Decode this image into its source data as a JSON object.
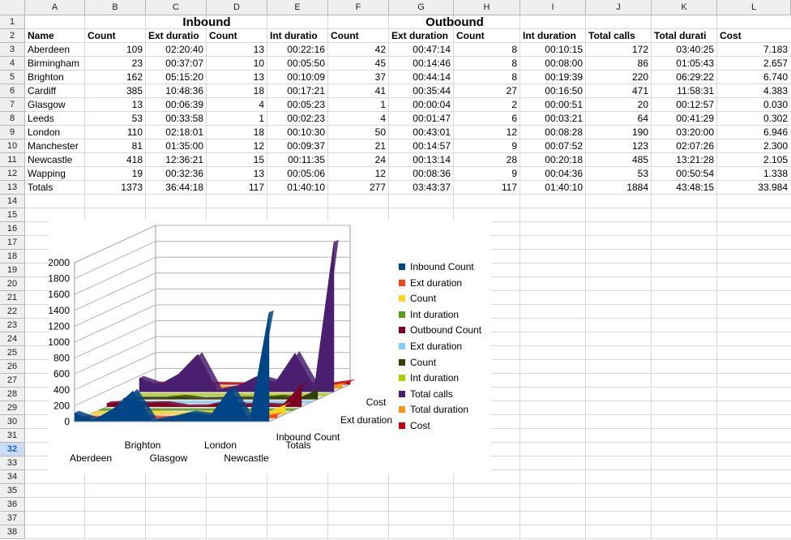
{
  "columns": [
    "A",
    "B",
    "C",
    "D",
    "E",
    "F",
    "G",
    "H",
    "I",
    "J",
    "K",
    "L"
  ],
  "rows_visible": [
    "1",
    "2",
    "3",
    "4",
    "5",
    "6",
    "7",
    "8",
    "9",
    "10",
    "11",
    "12",
    "13",
    "14",
    "15",
    "16",
    "17",
    "18",
    "19",
    "20",
    "21",
    "22",
    "23",
    "24",
    "25",
    "26",
    "27",
    "28",
    "29",
    "30",
    "31",
    "32",
    "33",
    "34",
    "35",
    "36",
    "37",
    "38"
  ],
  "selected_row": "32",
  "section_titles": {
    "inbound": "Inbound",
    "outbound": "Outbound"
  },
  "headers": [
    "Name",
    "Count",
    "Ext duratio",
    "Count",
    "Int duratio",
    "Count",
    "Ext duration",
    "Count",
    "Int duration",
    "Total calls",
    "Total durati",
    "Cost"
  ],
  "table": [
    [
      "Aberdeen",
      "109",
      "02:20:40",
      "13",
      "00:22:16",
      "42",
      "00:47:14",
      "8",
      "00:10:15",
      "172",
      "03:40:25",
      "7.183"
    ],
    [
      "Birmingham",
      "23",
      "00:37:07",
      "10",
      "00:05:50",
      "45",
      "00:14:46",
      "8",
      "00:08:00",
      "86",
      "01:05:43",
      "2.657"
    ],
    [
      "Brighton",
      "162",
      "05:15:20",
      "13",
      "00:10:09",
      "37",
      "00:44:14",
      "8",
      "00:19:39",
      "220",
      "06:29:22",
      "6.740"
    ],
    [
      "Cardiff",
      "385",
      "10:48:36",
      "18",
      "00:17:21",
      "41",
      "00:35:44",
      "27",
      "00:16:50",
      "471",
      "11:58:31",
      "4.383"
    ],
    [
      "Glasgow",
      "13",
      "00:06:39",
      "4",
      "00:05:23",
      "1",
      "00:00:04",
      "2",
      "00:00:51",
      "20",
      "00:12:57",
      "0.030"
    ],
    [
      "Leeds",
      "53",
      "00:33:58",
      "1",
      "00:02:23",
      "4",
      "00:01:47",
      "6",
      "00:03:21",
      "64",
      "00:41:29",
      "0.302"
    ],
    [
      "London",
      "110",
      "02:18:01",
      "18",
      "00:10:30",
      "50",
      "00:43:01",
      "12",
      "00:08:28",
      "190",
      "03:20:00",
      "6.946"
    ],
    [
      "Manchester",
      "81",
      "01:35:00",
      "12",
      "00:09:37",
      "21",
      "00:14:57",
      "9",
      "00:07:52",
      "123",
      "02:07:26",
      "2.300"
    ],
    [
      "Newcastle",
      "418",
      "12:36:21",
      "15",
      "00:11:35",
      "24",
      "00:13:14",
      "28",
      "00:20:18",
      "485",
      "13:21:28",
      "2.105"
    ],
    [
      "Wapping",
      "19",
      "00:32:36",
      "13",
      "00:05:06",
      "12",
      "00:08:36",
      "9",
      "00:04:36",
      "53",
      "00:50:54",
      "1.338"
    ],
    [
      "Totals",
      "1373",
      "36:44:18",
      "117",
      "01:40:10",
      "277",
      "03:43:37",
      "117",
      "01:40:10",
      "1884",
      "43:48:15",
      "33.984"
    ]
  ],
  "chart_data": {
    "type": "area",
    "three_d": true,
    "categories": [
      "Aberdeen",
      "Birmingham",
      "Brighton",
      "Cardiff",
      "Glasgow",
      "Leeds",
      "London",
      "Manchester",
      "Newcastle",
      "Wapping",
      "Totals"
    ],
    "x_tick_labels_front": [
      "Aberdeen",
      "Glasgow",
      "Newcastle"
    ],
    "x_tick_labels_back": [
      "Brighton",
      "London",
      "Totals"
    ],
    "ylim": [
      0,
      2000
    ],
    "y_ticks": [
      0,
      200,
      400,
      600,
      800,
      1000,
      1200,
      1400,
      1600,
      1800,
      2000
    ],
    "depth_labels": [
      "Inbound Count",
      "Ext duration",
      "Cost"
    ],
    "series": [
      {
        "name": "Inbound Count",
        "color": "#004586",
        "values": [
          109,
          23,
          162,
          385,
          13,
          53,
          110,
          81,
          418,
          19,
          1373
        ]
      },
      {
        "name": "Ext duration",
        "color": "#ff420e",
        "values": [
          2.3,
          0.6,
          5.3,
          10.8,
          0.1,
          0.6,
          2.3,
          1.6,
          12.6,
          0.5,
          36.7
        ]
      },
      {
        "name": "Count",
        "color": "#ffd320",
        "values": [
          13,
          10,
          13,
          18,
          4,
          1,
          18,
          12,
          15,
          13,
          117
        ]
      },
      {
        "name": "Int duration",
        "color": "#579d1c",
        "values": [
          0.4,
          0.1,
          0.2,
          0.3,
          0.1,
          0.0,
          0.2,
          0.2,
          0.2,
          0.1,
          1.7
        ]
      },
      {
        "name": "Outbound Count",
        "color": "#7e0021",
        "values": [
          42,
          45,
          37,
          41,
          1,
          4,
          50,
          21,
          24,
          12,
          277
        ]
      },
      {
        "name": "Ext duration",
        "color": "#83caff",
        "values": [
          0.8,
          0.2,
          0.7,
          0.6,
          0.0,
          0.0,
          0.7,
          0.2,
          0.2,
          0.1,
          3.7
        ]
      },
      {
        "name": "Count",
        "color": "#314004",
        "values": [
          8,
          8,
          8,
          27,
          2,
          6,
          12,
          9,
          28,
          9,
          117
        ]
      },
      {
        "name": "Int duration",
        "color": "#aecf00",
        "values": [
          0.2,
          0.1,
          0.3,
          0.3,
          0.0,
          0.1,
          0.1,
          0.1,
          0.3,
          0.1,
          1.7
        ]
      },
      {
        "name": "Total calls",
        "color": "#4b1f6f",
        "values": [
          172,
          86,
          220,
          471,
          20,
          64,
          190,
          123,
          485,
          53,
          1884
        ]
      },
      {
        "name": "Total duration",
        "color": "#ff950e",
        "values": [
          3.7,
          1.1,
          6.5,
          12.0,
          0.2,
          0.7,
          3.3,
          2.1,
          13.4,
          0.8,
          43.8
        ]
      },
      {
        "name": "Cost",
        "color": "#c5000b",
        "values": [
          7.183,
          2.657,
          6.74,
          4.383,
          0.03,
          0.302,
          6.946,
          2.3,
          2.105,
          1.338,
          33.984
        ]
      }
    ]
  }
}
